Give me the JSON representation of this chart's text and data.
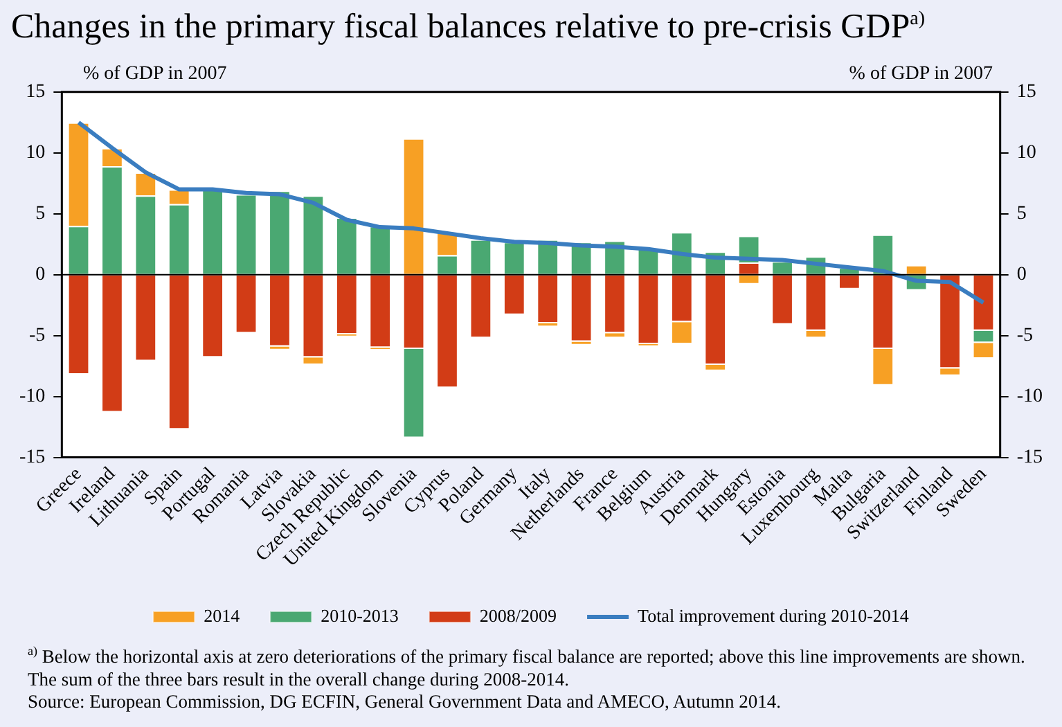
{
  "chart_data": {
    "type": "bar",
    "stacked": true,
    "title": "Changes in the primary fiscal balances relative to pre-crisis GDP$^{a)}$",
    "ylabel": "% of GDP in 2007",
    "y2label": "% of GDP in 2007",
    "categories": [
      "Greece",
      "Ireland",
      "Lithuania",
      "Spain",
      "Portugal",
      "Romania",
      "Latvia",
      "Slovakia",
      "Czech Republic",
      "United Kingdom",
      "Slovenia",
      "Cyprus",
      "Poland",
      "Germany",
      "Italy",
      "Netherlands",
      "France",
      "Belgium",
      "Austria",
      "Denmark",
      "Hungary",
      "Estonia",
      "Luxembourg",
      "Malta",
      "Bulgaria",
      "Switzerland",
      "Finland",
      "Sweden"
    ],
    "series": [
      {
        "name": "2008/2009",
        "color": "#d23c16",
        "values": [
          -8.2,
          -11.3,
          -7.1,
          -12.7,
          -6.8,
          -4.8,
          -5.9,
          -6.8,
          -4.9,
          -6.0,
          -6.1,
          -9.3,
          -5.2,
          -3.3,
          -4.0,
          -5.5,
          -4.8,
          -5.7,
          -3.9,
          -7.4,
          1.0,
          -4.1,
          -4.6,
          -1.2,
          -6.1,
          null,
          -7.7,
          -4.6
        ]
      },
      {
        "name": "2010-2013",
        "color": "#4aa872",
        "values": [
          4.0,
          8.9,
          6.5,
          5.8,
          7.0,
          6.6,
          6.9,
          6.5,
          4.7,
          4.0,
          -7.3,
          1.6,
          2.9,
          2.7,
          2.9,
          2.7,
          2.8,
          2.2,
          3.5,
          1.9,
          2.2,
          1.1,
          1.5,
          0.6,
          3.3,
          -1.3,
          null,
          -1.0
        ]
      },
      {
        "name": "2014",
        "color": "#f7a024",
        "values": [
          8.5,
          1.5,
          1.9,
          1.2,
          null,
          null,
          -0.3,
          -0.6,
          -0.2,
          -0.2,
          11.2,
          1.9,
          null,
          null,
          -0.3,
          -0.3,
          -0.4,
          -0.2,
          -1.8,
          -0.5,
          -0.8,
          null,
          -0.6,
          null,
          -3.0,
          0.8,
          -0.6,
          -1.3
        ]
      },
      {
        "name": "Total improvement during 2010-2014",
        "type": "line",
        "color": "#3a7dc0",
        "marker": "none",
        "values": [
          12.5,
          10.4,
          8.4,
          7.0,
          7.0,
          6.7,
          6.6,
          5.9,
          4.5,
          3.9,
          3.8,
          3.4,
          3.0,
          2.7,
          2.6,
          2.4,
          2.3,
          2.1,
          1.7,
          1.4,
          1.3,
          1.2,
          0.9,
          0.6,
          0.3,
          -0.5,
          -0.6,
          -2.3
        ]
      }
    ],
    "ylim": [
      -15,
      15
    ],
    "yticks": [
      -15,
      -10,
      -5,
      0,
      5,
      10,
      15
    ],
    "y2lim": [
      -15,
      15
    ],
    "y2ticks": [
      -15,
      -10,
      -5,
      0,
      5,
      10,
      15
    ],
    "grid": false,
    "legend": "bottom",
    "ref_lines": [
      {
        "axis": "y",
        "value": 0,
        "color": "#000000"
      }
    ],
    "annotations": [
      "$^{a)}$ Below the horizontal axis at zero deteriorations of the primary fiscal balance are reported; above this line improvements are shown. The sum of the three bars result in the overall change during 2008-2014.",
      "Source: European Commission, DG ECFIN, General Government Data and AMECO, Autumn 2014."
    ]
  }
}
